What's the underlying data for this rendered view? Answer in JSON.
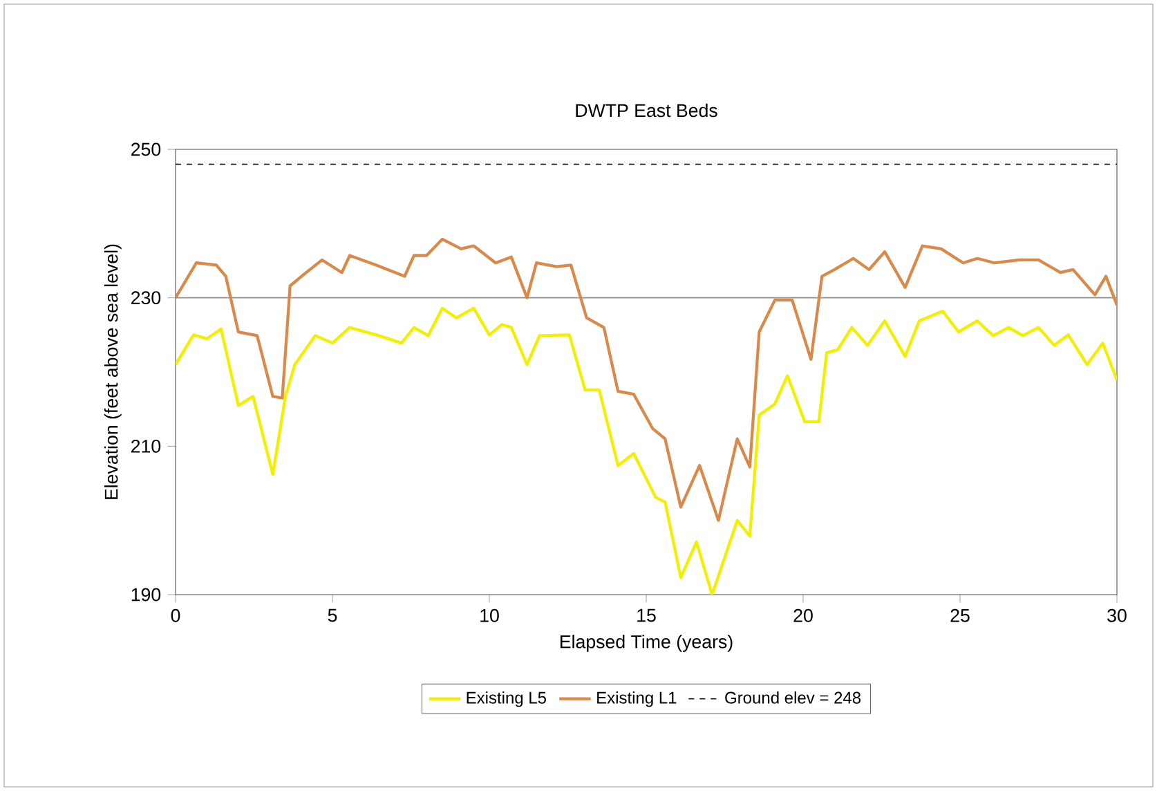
{
  "chart_data": {
    "type": "line",
    "title": "DWTP East Beds",
    "xlabel": "Elapsed Time (years)",
    "ylabel": "Elevation (feet above sea level)",
    "xlim": [
      0,
      30
    ],
    "xticks": [
      0,
      5,
      10,
      15,
      20,
      25,
      30
    ],
    "ylim": [
      190,
      250
    ],
    "yticks": [
      190,
      210,
      230,
      250
    ],
    "legend": "bottom",
    "grid": false,
    "marker": "none",
    "ref_lines": [
      {
        "axis": "y",
        "value": 230,
        "color": "#909090"
      }
    ],
    "series": [
      {
        "name": "Existing L5",
        "color": "#f0f000",
        "line_style": "solid",
        "x": [
          0,
          0.57,
          1.0,
          1.45,
          2.0,
          2.47,
          3.1,
          3.5,
          3.8,
          4.45,
          5.0,
          5.55,
          6.4,
          7.2,
          7.6,
          8.05,
          8.5,
          8.95,
          9.5,
          10.0,
          10.4,
          10.7,
          11.2,
          11.6,
          12.55,
          13.05,
          13.5,
          14.1,
          14.6,
          15.3,
          15.6,
          16.1,
          16.6,
          17.1,
          17.9,
          18.3,
          18.6,
          19.1,
          19.5,
          20.05,
          20.5,
          20.75,
          21.1,
          21.55,
          22.05,
          22.6,
          23.25,
          23.7,
          24.45,
          24.95,
          25.55,
          26.05,
          26.55,
          27.0,
          27.5,
          28.0,
          28.45,
          29.05,
          29.55,
          30
        ],
        "values": [
          221,
          225,
          224.5,
          225.8,
          215.5,
          216.7,
          206.2,
          216.7,
          221,
          224.9,
          223.9,
          226,
          225,
          223.9,
          226,
          224.9,
          228.6,
          227.3,
          228.6,
          225,
          226.4,
          226,
          221,
          224.9,
          225,
          217.6,
          217.6,
          207.4,
          209,
          203.1,
          202.5,
          192.3,
          197.1,
          190,
          200,
          197.9,
          214.2,
          215.7,
          219.5,
          213.3,
          213.3,
          222.6,
          223,
          226,
          223.6,
          226.9,
          222.1,
          226.9,
          228.2,
          225.4,
          226.9,
          224.9,
          226,
          224.9,
          226,
          223.6,
          225,
          221,
          223.9,
          218.9
        ]
      },
      {
        "name": "Existing L1",
        "color": "#d98a4a",
        "line_style": "solid",
        "x": [
          0,
          0.66,
          1.3,
          1.6,
          2.0,
          2.6,
          3.1,
          3.4,
          3.65,
          4.1,
          4.67,
          5.3,
          5.55,
          6.4,
          7.3,
          7.6,
          8.0,
          8.5,
          9.1,
          9.5,
          10.2,
          10.7,
          11.2,
          11.5,
          12.15,
          12.6,
          13.1,
          13.65,
          14.1,
          14.6,
          15.2,
          15.6,
          16.1,
          16.7,
          17.3,
          17.9,
          18.3,
          18.6,
          19.1,
          19.65,
          20.25,
          20.6,
          21.0,
          21.6,
          22.1,
          22.6,
          23.25,
          23.8,
          24.4,
          25.1,
          25.55,
          26.1,
          26.9,
          27.5,
          28.2,
          28.6,
          29.3,
          29.65,
          30
        ],
        "values": [
          230,
          234.7,
          234.4,
          232.9,
          225.4,
          224.9,
          216.7,
          216.5,
          231.6,
          233.2,
          235.1,
          233.4,
          235.7,
          234.4,
          232.9,
          235.7,
          235.7,
          237.9,
          236.6,
          237,
          234.7,
          235.5,
          230,
          234.7,
          234.2,
          234.4,
          227.3,
          226,
          217.4,
          217,
          212.4,
          211,
          201.8,
          207.4,
          200,
          211,
          207.2,
          225.4,
          229.7,
          229.7,
          221.7,
          232.9,
          233.8,
          235.3,
          233.8,
          236.2,
          231.4,
          237,
          236.6,
          234.7,
          235.3,
          234.7,
          235.1,
          235.1,
          233.4,
          233.8,
          230.4,
          232.9,
          229
        ]
      },
      {
        "name": "Ground elev = 248",
        "color": "#000000",
        "line_style": "dashed",
        "x": [
          0,
          30
        ],
        "values": [
          248,
          248
        ]
      }
    ]
  }
}
